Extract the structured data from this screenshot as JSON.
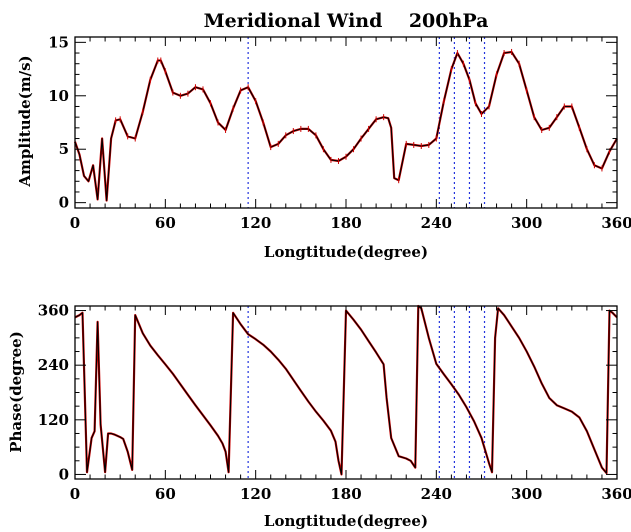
{
  "chart_data": [
    {
      "type": "line",
      "title": "Meridional Wind    200hPa",
      "xlabel": "Longtitude(degree)",
      "ylabel": "Amplitude(m/s)",
      "xlim": [
        0,
        360
      ],
      "ylim": [
        -0.5,
        15.5
      ],
      "xticks": [
        0,
        60,
        120,
        180,
        240,
        300,
        360
      ],
      "yticks": [
        0,
        5,
        10,
        15
      ],
      "grid": false,
      "series": [
        {
          "color": "#000000",
          "x": [
            0,
            3,
            6,
            9,
            12,
            15,
            18,
            21,
            24,
            27,
            30,
            35,
            40,
            45,
            50,
            55,
            57,
            60,
            65,
            70,
            75,
            80,
            85,
            90,
            95,
            100,
            105,
            110,
            115,
            120,
            125,
            130,
            135,
            140,
            145,
            150,
            155,
            160,
            165,
            170,
            175,
            180,
            185,
            190,
            195,
            200,
            205,
            208,
            210,
            212,
            215,
            220,
            225,
            230,
            235,
            240,
            245,
            250,
            254,
            258,
            262,
            266,
            270,
            275,
            280,
            285,
            290,
            295,
            300,
            305,
            310,
            315,
            320,
            325,
            330,
            335,
            340,
            345,
            350,
            355,
            360
          ],
          "values": [
            5.7,
            4.5,
            2.5,
            2.0,
            3.5,
            0.3,
            6.0,
            0.2,
            6.0,
            7.7,
            7.8,
            6.2,
            6.0,
            8.5,
            11.5,
            13.3,
            13.3,
            12.3,
            10.3,
            10.0,
            10.2,
            10.8,
            10.6,
            9.3,
            7.5,
            6.8,
            8.8,
            10.5,
            10.8,
            9.5,
            7.5,
            5.2,
            5.5,
            6.3,
            6.7,
            6.9,
            6.9,
            6.3,
            5.0,
            4.0,
            3.9,
            4.3,
            5.0,
            6.0,
            6.9,
            7.8,
            8.0,
            7.9,
            7.0,
            2.3,
            2.1,
            5.5,
            5.4,
            5.3,
            5.4,
            6.0,
            9.5,
            12.5,
            14.0,
            13.0,
            11.5,
            9.3,
            8.3,
            9.0,
            12.0,
            14.0,
            14.1,
            13.0,
            10.5,
            8.0,
            6.8,
            7.0,
            8.0,
            9.0,
            9.0,
            7.0,
            5.0,
            3.5,
            3.2,
            4.8,
            6.0
          ]
        }
      ],
      "vlines": {
        "color": "#2233dd",
        "style": "dotted",
        "x": [
          115,
          242,
          252,
          262,
          272
        ]
      }
    },
    {
      "type": "line",
      "title": "",
      "xlabel": "Longtitude(degree)",
      "ylabel": "Phase(degree)",
      "xlim": [
        0,
        360
      ],
      "ylim": [
        -10,
        370
      ],
      "xticks": [
        0,
        60,
        120,
        180,
        240,
        300,
        360
      ],
      "yticks": [
        0,
        120,
        240,
        360
      ],
      "grid": false,
      "series": [
        {
          "color": "#000000",
          "x": [
            0,
            3,
            5,
            8,
            11,
            13,
            15,
            17,
            20,
            22,
            24,
            26,
            28,
            30,
            32,
            35,
            38,
            40,
            45,
            50,
            55,
            60,
            65,
            70,
            75,
            80,
            85,
            90,
            95,
            98,
            100,
            102,
            105,
            110,
            115,
            120,
            125,
            130,
            135,
            140,
            145,
            150,
            155,
            160,
            165,
            170,
            173,
            175,
            177,
            180,
            185,
            190,
            195,
            200,
            205,
            207,
            210,
            215,
            220,
            223,
            226,
            228,
            230,
            235,
            240,
            245,
            250,
            255,
            260,
            265,
            270,
            275,
            277,
            279,
            281,
            285,
            290,
            295,
            300,
            305,
            310,
            315,
            320,
            325,
            330,
            335,
            340,
            345,
            350,
            353,
            355,
            357,
            360
          ],
          "values": [
            345,
            350,
            355,
            5,
            80,
            95,
            335,
            110,
            5,
            90,
            90,
            88,
            85,
            82,
            78,
            50,
            10,
            350,
            310,
            283,
            262,
            242,
            221,
            198,
            175,
            152,
            130,
            108,
            85,
            68,
            50,
            5,
            355,
            330,
            308,
            297,
            285,
            270,
            252,
            232,
            208,
            184,
            160,
            138,
            118,
            96,
            72,
            30,
            0,
            360,
            340,
            318,
            293,
            268,
            242,
            168,
            80,
            40,
            35,
            30,
            15,
            370,
            365,
            300,
            243,
            220,
            198,
            175,
            148,
            117,
            80,
            25,
            5,
            300,
            365,
            350,
            325,
            300,
            270,
            237,
            200,
            168,
            152,
            145,
            138,
            125,
            95,
            55,
            15,
            3,
            360,
            355,
            345
          ]
        }
      ],
      "vlines": {
        "color": "#2233dd",
        "style": "dotted",
        "x": [
          115,
          242,
          252,
          262,
          272
        ]
      }
    }
  ]
}
